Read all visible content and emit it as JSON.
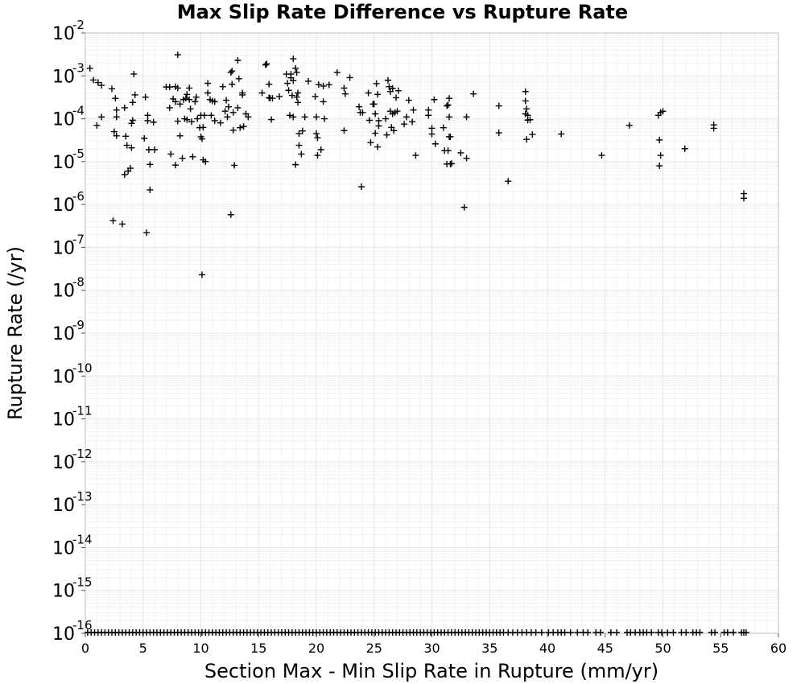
{
  "chart_data": {
    "type": "scatter",
    "title": "Max Slip Rate Difference vs Rupture Rate",
    "xlabel": "Section Max - Min Slip Rate in Rupture (mm/yr)",
    "ylabel": "Rupture Rate (/yr)",
    "xlim": [
      0,
      60
    ],
    "ylim": [
      1e-16,
      0.01
    ],
    "yscale": "log",
    "grid": true,
    "x_ticks": [
      "0",
      "5",
      "10",
      "15",
      "20",
      "25",
      "30",
      "35",
      "40",
      "45",
      "50",
      "55",
      "60"
    ],
    "y_ticks": [
      {
        "base": "10",
        "exp": "-16"
      },
      {
        "base": "10",
        "exp": "-15"
      },
      {
        "base": "10",
        "exp": "-14"
      },
      {
        "base": "10",
        "exp": "-13"
      },
      {
        "base": "10",
        "exp": "-12"
      },
      {
        "base": "10",
        "exp": "-11"
      },
      {
        "base": "10",
        "exp": "-10"
      },
      {
        "base": "10",
        "exp": "-9"
      },
      {
        "base": "10",
        "exp": "-8"
      },
      {
        "base": "10",
        "exp": "-7"
      },
      {
        "base": "10",
        "exp": "-6"
      },
      {
        "base": "10",
        "exp": "-5"
      },
      {
        "base": "10",
        "exp": "-4"
      },
      {
        "base": "10",
        "exp": "-3"
      },
      {
        "base": "10",
        "exp": "-2"
      }
    ],
    "marker": "+",
    "marker_color": "#000000",
    "series": [
      {
        "points": [
          [
            0.4,
            0.0015
          ],
          [
            0.7,
            0.0008
          ],
          [
            1.1,
            0.0007
          ],
          [
            1.4,
            0.0006
          ],
          [
            1.0,
            7e-05
          ],
          [
            1.4,
            0.00011
          ],
          [
            2.3,
            0.0005
          ],
          [
            2.6,
            0.0003
          ],
          [
            2.7,
            0.00016
          ],
          [
            2.7,
            0.00011
          ],
          [
            2.5,
            5e-05
          ],
          [
            2.7,
            4e-05
          ],
          [
            3.4,
            0.00018
          ],
          [
            3.5,
            3.9e-05
          ],
          [
            3.6,
            2.4e-05
          ],
          [
            3.4,
            5e-06
          ],
          [
            3.7,
            6e-06
          ],
          [
            3.9,
            7e-06
          ],
          [
            4.0,
            2.1e-05
          ],
          [
            4.1,
            0.00024
          ],
          [
            4.1,
            9.2e-05
          ],
          [
            4.0,
            7.8e-05
          ],
          [
            4.3,
            0.00036
          ],
          [
            4.2,
            0.0011
          ],
          [
            5.2,
            0.00032
          ],
          [
            5.1,
            3.5e-05
          ],
          [
            5.4,
            0.00012
          ],
          [
            5.4,
            9e-05
          ],
          [
            5.5,
            1.9e-05
          ],
          [
            5.6,
            8.6e-06
          ],
          [
            5.6,
            2.2e-06
          ],
          [
            5.9,
            8.3e-05
          ],
          [
            6.0,
            1.9e-05
          ],
          [
            2.4,
            4.2e-07
          ],
          [
            3.2,
            3.5e-07
          ],
          [
            5.3,
            2.2e-07
          ],
          [
            7.0,
            0.00055
          ],
          [
            7.3,
            0.00055
          ],
          [
            7.3,
            0.00018
          ],
          [
            7.4,
            1.5e-05
          ],
          [
            7.6,
            0.00029
          ],
          [
            7.8,
            0.00056
          ],
          [
            7.8,
            0.00025
          ],
          [
            7.8,
            8.3e-06
          ],
          [
            8.0,
            0.0031
          ],
          [
            8.0,
            0.00052
          ],
          [
            8.0,
            8.8e-05
          ],
          [
            8.2,
            4e-05
          ],
          [
            8.2,
            0.00022
          ],
          [
            8.4,
            1.2e-05
          ],
          [
            8.5,
            0.00028
          ],
          [
            8.6,
            0.0001
          ],
          [
            8.7,
            0.0003
          ],
          [
            8.8,
            0.00037
          ],
          [
            8.8,
            9.5e-05
          ],
          [
            9.0,
            0.00052
          ],
          [
            9.0,
            0.00028
          ],
          [
            9.1,
            0.00017
          ],
          [
            9.2,
            8.5e-05
          ],
          [
            9.3,
            1.3e-05
          ],
          [
            9.5,
            0.00025
          ],
          [
            9.6,
            0.00032
          ],
          [
            9.7,
            0.0001
          ],
          [
            10.0,
            0.00012
          ],
          [
            9.9,
            6.2e-05
          ],
          [
            10.0,
            3.8e-05
          ],
          [
            10.1,
            3.4e-05
          ],
          [
            10.2,
            6.3e-05
          ],
          [
            10.2,
            1.1e-05
          ],
          [
            10.3,
            0.00012
          ],
          [
            10.4,
            1e-05
          ],
          [
            10.6,
            0.00067
          ],
          [
            10.6,
            0.0004
          ],
          [
            10.8,
            0.00028
          ],
          [
            10.9,
            0.00012
          ],
          [
            11.0,
            0.00026
          ],
          [
            11.2,
            0.00025
          ],
          [
            11.2,
            9e-05
          ],
          [
            11.7,
            8e-05
          ],
          [
            11.9,
            0.00056
          ],
          [
            12.1,
            0.00015
          ],
          [
            12.2,
            0.00027
          ],
          [
            12.4,
            0.00019
          ],
          [
            12.3,
            0.00011
          ],
          [
            12.6,
            0.0012
          ],
          [
            12.7,
            0.0013
          ],
          [
            12.7,
            0.00064
          ],
          [
            12.8,
            0.00014
          ],
          [
            12.8,
            5.4e-05
          ],
          [
            12.9,
            8.2e-06
          ],
          [
            13.2,
            0.0023
          ],
          [
            13.2,
            0.00018
          ],
          [
            13.3,
            0.00086
          ],
          [
            13.4,
            6.2e-05
          ],
          [
            13.6,
            0.0004
          ],
          [
            13.6,
            0.00036
          ],
          [
            13.7,
            6.6e-05
          ],
          [
            13.9,
            0.00013
          ],
          [
            14.1,
            0.00011
          ],
          [
            10.1,
            2.3e-08
          ],
          [
            12.6,
            5.8e-07
          ],
          [
            15.3,
            0.0004
          ],
          [
            15.6,
            0.0018
          ],
          [
            15.7,
            0.0019
          ],
          [
            15.9,
            0.00064
          ],
          [
            15.9,
            0.00031
          ],
          [
            16.0,
            0.0003
          ],
          [
            16.1,
            9.6e-05
          ],
          [
            16.2,
            0.0003
          ],
          [
            16.8,
            0.00033
          ],
          [
            17.4,
            0.0011
          ],
          [
            17.5,
            0.00067
          ],
          [
            17.6,
            0.00046
          ],
          [
            17.7,
            0.00012
          ],
          [
            17.8,
            0.0011
          ],
          [
            17.8,
            0.0009
          ],
          [
            17.9,
            0.00035
          ],
          [
            18.0,
            0.0025
          ],
          [
            18.0,
            0.00077
          ],
          [
            18.0,
            0.00011
          ],
          [
            18.2,
            0.0015
          ],
          [
            18.2,
            8.5e-06
          ],
          [
            18.3,
            0.0012
          ],
          [
            18.3,
            0.00032
          ],
          [
            18.4,
            0.0004
          ],
          [
            18.4,
            0.00024
          ],
          [
            18.5,
            4.5e-05
          ],
          [
            18.5,
            2.4e-05
          ],
          [
            18.7,
            1.5e-05
          ],
          [
            18.8,
            5.2e-05
          ],
          [
            19.0,
            0.00011
          ],
          [
            19.3,
            0.00075
          ],
          [
            19.9,
            0.00033
          ],
          [
            20.0,
            0.00011
          ],
          [
            20.0,
            4.5e-05
          ],
          [
            20.1,
            3.6e-05
          ],
          [
            20.2,
            0.00063
          ],
          [
            20.1,
            1.4e-05
          ],
          [
            20.4,
            1.9e-05
          ],
          [
            20.6,
            0.00025
          ],
          [
            20.6,
            0.00058
          ],
          [
            20.7,
            0.0001
          ],
          [
            21.1,
            0.00062
          ],
          [
            21.8,
            0.0012
          ],
          [
            22.4,
            0.00052
          ],
          [
            22.4,
            5.3e-05
          ],
          [
            22.5,
            0.00038
          ],
          [
            22.9,
            0.00091
          ],
          [
            23.7,
            0.00019
          ],
          [
            23.8,
            0.00014
          ],
          [
            24.0,
            0.00014
          ],
          [
            23.9,
            2.6e-06
          ],
          [
            24.5,
            0.0004
          ],
          [
            24.6,
            9.2e-05
          ],
          [
            24.7,
            2.8e-05
          ],
          [
            24.9,
            0.00022
          ],
          [
            25.0,
            0.00022
          ],
          [
            25.1,
            0.00013
          ],
          [
            25.2,
            0.00066
          ],
          [
            25.1,
            4.6e-05
          ],
          [
            25.3,
            0.00037
          ],
          [
            25.3,
            2.2e-05
          ],
          [
            25.4,
            9e-05
          ],
          [
            25.4,
            6.8e-05
          ],
          [
            26.0,
            0.0001
          ],
          [
            26.1,
            4.2e-05
          ],
          [
            26.2,
            0.00079
          ],
          [
            26.3,
            0.00056
          ],
          [
            26.4,
            0.00043
          ],
          [
            26.4,
            0.00015
          ],
          [
            26.5,
            6.3e-05
          ],
          [
            26.6,
            0.00051
          ],
          [
            26.6,
            0.00013
          ],
          [
            26.7,
            5.3e-05
          ],
          [
            26.8,
            0.00014
          ],
          [
            26.9,
            0.00031
          ],
          [
            27.0,
            0.00015
          ],
          [
            27.1,
            0.00045
          ],
          [
            27.6,
            7.5e-05
          ],
          [
            27.8,
            0.00011
          ],
          [
            28.0,
            0.00027
          ],
          [
            28.3,
            8.5e-05
          ],
          [
            28.4,
            0.00016
          ],
          [
            28.6,
            1.4e-05
          ],
          [
            29.7,
            0.00016
          ],
          [
            29.7,
            0.00012
          ],
          [
            30.0,
            6e-05
          ],
          [
            30.0,
            4.4e-05
          ],
          [
            30.2,
            0.00028
          ],
          [
            30.3,
            2.6e-05
          ],
          [
            31.0,
            6.2e-05
          ],
          [
            31.1,
            1.8e-05
          ],
          [
            31.3,
            0.0002
          ],
          [
            31.4,
            0.00021
          ],
          [
            31.4,
            1.8e-05
          ],
          [
            31.5,
            0.0003
          ],
          [
            31.5,
            0.00011
          ],
          [
            31.6,
            3.8e-05
          ],
          [
            31.6,
            8.8e-06
          ],
          [
            31.5,
            3.8e-05
          ],
          [
            31.3,
            8.8e-06
          ],
          [
            31.7,
            9e-06
          ],
          [
            32.5,
            1.6e-05
          ],
          [
            32.8,
            8.6e-07
          ],
          [
            33.0,
            0.00011
          ],
          [
            33.0,
            1.2e-05
          ],
          [
            33.6,
            0.00038
          ],
          [
            35.8,
            0.0002
          ],
          [
            35.8,
            4.7e-05
          ],
          [
            36.6,
            3.5e-06
          ],
          [
            38.1,
            0.00043
          ],
          [
            38.1,
            0.00026
          ],
          [
            38.2,
            0.00017
          ],
          [
            38.1,
            0.00013
          ],
          [
            38.3,
            0.00012
          ],
          [
            38.2,
            3.3e-05
          ],
          [
            38.3,
            9.3e-05
          ],
          [
            38.5,
            9.5e-05
          ],
          [
            38.7,
            4.3e-05
          ],
          [
            41.2,
            4.4e-05
          ],
          [
            44.7,
            1.4e-05
          ],
          [
            47.1,
            7e-05
          ],
          [
            49.6,
            0.00012
          ],
          [
            49.7,
            3.2e-05
          ],
          [
            49.8,
            0.00014
          ],
          [
            49.7,
            8e-06
          ],
          [
            49.8,
            1.4e-05
          ],
          [
            50.0,
            0.00015
          ],
          [
            51.9,
            2e-05
          ],
          [
            54.4,
            7.2e-05
          ],
          [
            54.4,
            6e-05
          ],
          [
            57.0,
            1.8e-06
          ],
          [
            57.0,
            1.4e-06
          ]
        ]
      }
    ],
    "zero_rate_x": [
      0.2,
      0.5,
      0.8,
      1.1,
      1.4,
      1.7,
      2.0,
      2.3,
      2.6,
      2.9,
      3.2,
      3.5,
      3.8,
      4.1,
      4.4,
      4.7,
      5.0,
      5.3,
      5.6,
      5.9,
      6.2,
      6.5,
      6.8,
      7.1,
      7.4,
      7.7,
      8.0,
      8.3,
      8.6,
      8.9,
      9.2,
      9.5,
      9.8,
      10.1,
      10.4,
      10.7,
      11.0,
      11.3,
      11.6,
      11.9,
      12.2,
      12.5,
      12.8,
      13.1,
      13.4,
      13.7,
      14.0,
      14.3,
      14.6,
      14.9,
      15.2,
      15.5,
      15.8,
      16.1,
      16.4,
      16.7,
      17.0,
      17.3,
      17.6,
      17.9,
      18.2,
      18.5,
      18.8,
      19.1,
      19.4,
      19.7,
      20.0,
      20.3,
      20.6,
      20.9,
      21.2,
      21.5,
      21.8,
      22.1,
      22.4,
      22.7,
      23.0,
      23.3,
      23.6,
      23.9,
      24.2,
      24.5,
      24.8,
      25.1,
      25.4,
      25.7,
      26.0,
      26.3,
      26.6,
      26.9,
      27.2,
      27.5,
      27.8,
      28.1,
      28.4,
      28.7,
      29.0,
      29.3,
      29.6,
      29.9,
      30.2,
      30.5,
      30.8,
      31.1,
      31.4,
      31.7,
      32.0,
      32.3,
      32.6,
      32.9,
      33.2,
      33.5,
      33.8,
      34.1,
      34.4,
      34.7,
      35.0,
      35.3,
      35.6,
      35.9,
      36.2,
      36.6,
      37.0,
      37.4,
      37.8,
      38.2,
      38.6,
      39.0,
      39.5,
      40.1,
      40.5,
      40.9,
      41.2,
      41.5,
      42.0,
      42.6,
      43.1,
      43.5,
      44.2,
      44.6,
      45.5,
      46.0,
      46.9,
      47.2,
      47.6,
      48.0,
      48.3,
      48.6,
      49.0,
      49.6,
      49.9,
      50.4,
      50.9,
      51.6,
      52.0,
      52.6,
      52.9,
      53.2,
      54.2,
      54.5,
      55.3,
      55.6,
      56.1,
      56.8,
      57.0,
      57.2
    ]
  }
}
